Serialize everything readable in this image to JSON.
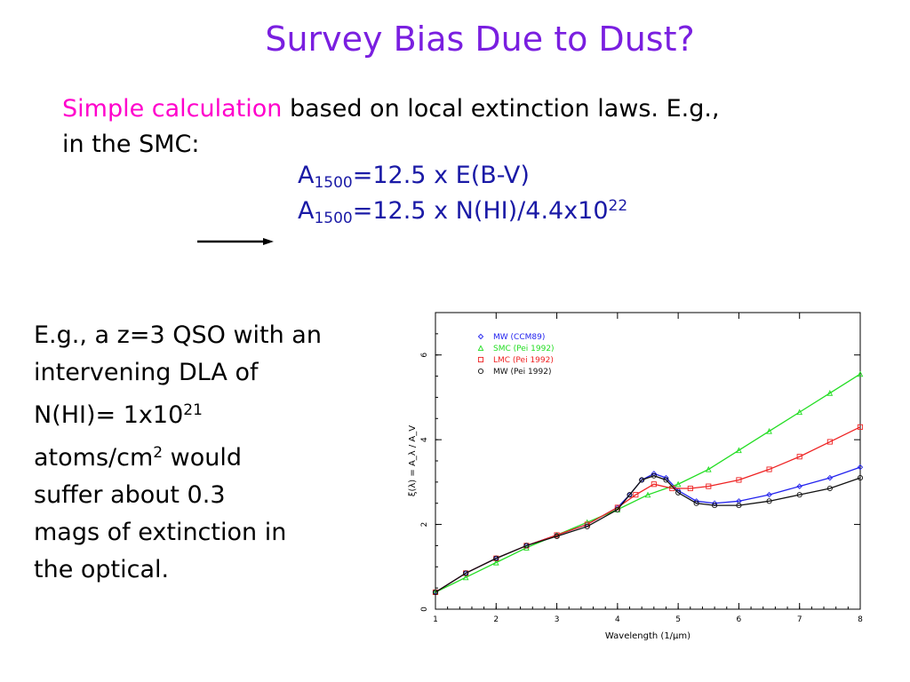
{
  "slide": {
    "title": "Survey Bias Due to Dust?",
    "intro_highlight": "Simple calculation",
    "intro_rest": " based on local extinction laws.  E.g.,",
    "intro_line2": "in the SMC:",
    "formula1": {
      "a": "A",
      "sub": "1500",
      "rest": "=12.5 x E(B-V)"
    },
    "formula2": {
      "a": "A",
      "sub": "1500",
      "rest": "=12.5 x N(HI)/4.4x10",
      "sup": "22"
    },
    "para": {
      "line1": "E.g., a z=3 QSO with an",
      "line2": "intervening DLA of",
      "line3_pre": "N(HI)= 1x10",
      "line3_sup": "21",
      "line4_pre": "atoms/cm",
      "line4_sup": "2",
      "line4_post": "  would",
      "line5": "suffer about 0.3",
      "line6": "mags of extinction in",
      "line7": "the optical."
    }
  },
  "colors": {
    "title": "#7a1fe0",
    "highlight": "#ff00cc",
    "formula": "#1a1aa6"
  },
  "chart_data": {
    "type": "line",
    "xlabel": "Wavelength (1/μm)",
    "ylabel": "ξ(λ) = A_λ / A_V",
    "xlim": [
      1,
      8
    ],
    "ylim": [
      0,
      7
    ],
    "xticks": [
      1,
      2,
      3,
      4,
      5,
      6,
      7,
      8
    ],
    "yticks": [
      0,
      2,
      4,
      6
    ],
    "legend_position": "top-left",
    "series": [
      {
        "name": "MW (CCM89)",
        "color": "#2222ee",
        "marker": "diamond",
        "x": [
          1,
          1.5,
          2,
          2.5,
          3,
          3.5,
          4,
          4.2,
          4.4,
          4.6,
          4.8,
          5,
          5.3,
          5.6,
          6,
          6.5,
          7,
          7.5,
          8
        ],
        "y": [
          0.4,
          0.85,
          1.2,
          1.5,
          1.75,
          2.0,
          2.4,
          2.7,
          3.05,
          3.2,
          3.1,
          2.8,
          2.55,
          2.5,
          2.55,
          2.7,
          2.9,
          3.1,
          3.35
        ]
      },
      {
        "name": "SMC (Pei 1992)",
        "color": "#22dd22",
        "marker": "triangle",
        "x": [
          1,
          1.5,
          2,
          2.5,
          3,
          3.5,
          4,
          4.5,
          5,
          5.5,
          6,
          6.5,
          7,
          7.5,
          8
        ],
        "y": [
          0.4,
          0.75,
          1.1,
          1.45,
          1.75,
          2.05,
          2.35,
          2.7,
          2.95,
          3.3,
          3.75,
          4.2,
          4.65,
          5.1,
          5.55
        ]
      },
      {
        "name": "LMC (Pei 1992)",
        "color": "#ee2222",
        "marker": "square",
        "x": [
          1,
          1.5,
          2,
          2.5,
          3,
          3.5,
          4,
          4.3,
          4.6,
          4.9,
          5.2,
          5.5,
          6,
          6.5,
          7,
          7.5,
          8
        ],
        "y": [
          0.4,
          0.85,
          1.2,
          1.5,
          1.75,
          2.0,
          2.4,
          2.7,
          2.95,
          2.85,
          2.85,
          2.9,
          3.05,
          3.3,
          3.6,
          3.95,
          4.3
        ]
      },
      {
        "name": "MW (Pei 1992)",
        "color": "#111111",
        "marker": "circle",
        "x": [
          1,
          1.5,
          2,
          2.5,
          3,
          3.5,
          4,
          4.2,
          4.4,
          4.6,
          4.8,
          5,
          5.3,
          5.6,
          6,
          6.5,
          7,
          7.5,
          8
        ],
        "y": [
          0.4,
          0.85,
          1.2,
          1.5,
          1.72,
          1.95,
          2.35,
          2.7,
          3.05,
          3.15,
          3.05,
          2.75,
          2.5,
          2.45,
          2.45,
          2.55,
          2.7,
          2.85,
          3.1
        ]
      }
    ]
  }
}
